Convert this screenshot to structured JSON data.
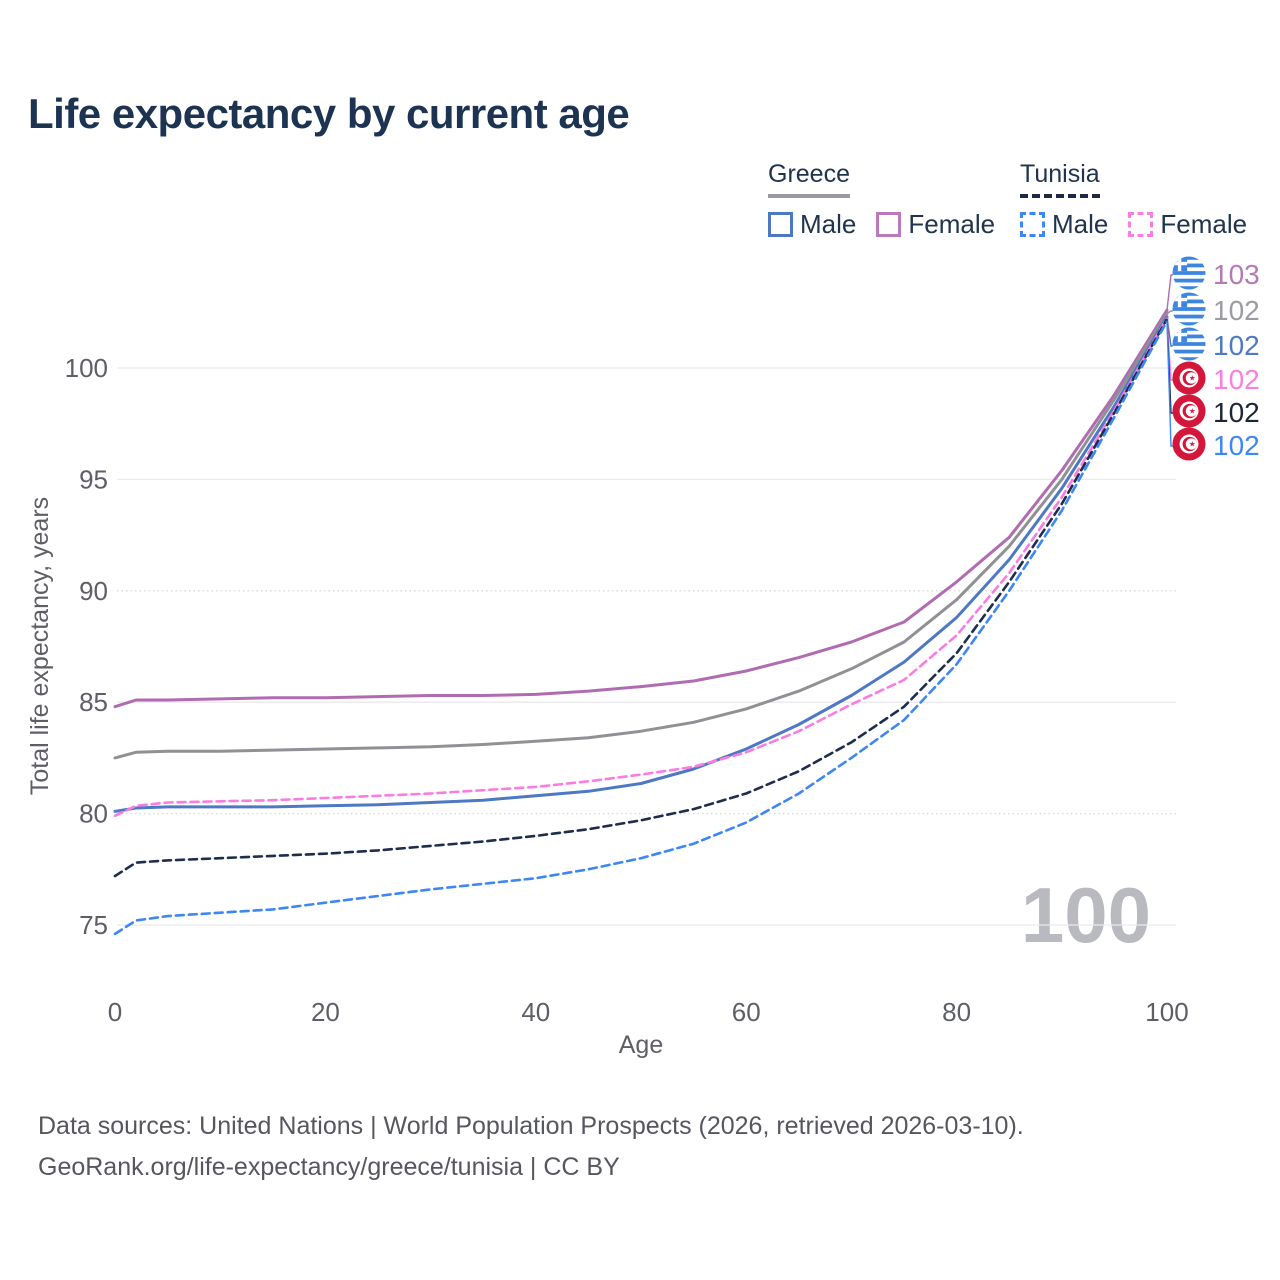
{
  "title": "Life expectancy by current age",
  "legend": {
    "groups": [
      {
        "label": "Greece",
        "line_style": "solid",
        "underline_color": "#9a9aa0",
        "items": [
          {
            "label": "Male",
            "color": "#4d78c4",
            "dashed": false
          },
          {
            "label": "Female",
            "color": "#bb79bb",
            "dashed": false
          }
        ]
      },
      {
        "label": "Tunisia",
        "line_style": "dashed",
        "underline_color": "#1c2940",
        "items": [
          {
            "label": "Male",
            "color": "#3d87f5",
            "dashed": true
          },
          {
            "label": "Female",
            "color": "#fc7ee0",
            "dashed": true
          }
        ]
      }
    ]
  },
  "chart_data": {
    "type": "line",
    "title": "Life expectancy by current age",
    "xlabel": "Age",
    "ylabel": "Total life expectancy, years",
    "xlim": [
      0,
      100
    ],
    "ylim": [
      73.5,
      103.5
    ],
    "x_ticks": [
      0,
      20,
      40,
      60,
      80,
      100
    ],
    "y_ticks": [
      75,
      80,
      85,
      90,
      95,
      100
    ],
    "dotted_gridlines": [
      80,
      90
    ],
    "grid": true,
    "legend_position": "top-right",
    "watermark": "100",
    "x": [
      0,
      2,
      5,
      10,
      15,
      20,
      25,
      30,
      35,
      40,
      45,
      50,
      55,
      60,
      65,
      70,
      75,
      80,
      85,
      90,
      95,
      100
    ],
    "series": [
      {
        "name": "Greece Female",
        "country": "Greece",
        "sex": "Female",
        "color": "#b16bb1",
        "dash": false,
        "end_label": "103",
        "values": [
          84.8,
          85.1,
          85.1,
          85.15,
          85.2,
          85.2,
          85.25,
          85.3,
          85.3,
          85.35,
          85.5,
          85.7,
          85.95,
          86.4,
          87.0,
          87.7,
          88.6,
          90.4,
          92.4,
          95.4,
          98.8,
          102.6
        ]
      },
      {
        "name": "Greece",
        "country": "Greece",
        "sex": "Both",
        "color": "#909095",
        "dash": false,
        "end_label": "102",
        "values": [
          82.5,
          82.75,
          82.8,
          82.8,
          82.85,
          82.9,
          82.95,
          83.0,
          83.1,
          83.25,
          83.4,
          83.7,
          84.1,
          84.7,
          85.5,
          86.5,
          87.7,
          89.6,
          92.0,
          95.0,
          98.6,
          102.45
        ]
      },
      {
        "name": "Greece Male",
        "country": "Greece",
        "sex": "Male",
        "color": "#4d78c4",
        "dash": false,
        "end_label": "102",
        "values": [
          80.1,
          80.25,
          80.3,
          80.3,
          80.3,
          80.35,
          80.4,
          80.5,
          80.6,
          80.8,
          81.0,
          81.35,
          82.0,
          82.9,
          84.0,
          85.3,
          86.8,
          88.8,
          91.4,
          94.6,
          98.3,
          102.3
        ]
      },
      {
        "name": "Tunisia Female",
        "country": "Tunisia",
        "sex": "Female",
        "color": "#fb7be1",
        "dash": true,
        "end_label": "102",
        "values": [
          79.9,
          80.35,
          80.5,
          80.55,
          80.6,
          80.7,
          80.8,
          80.9,
          81.05,
          81.2,
          81.45,
          81.75,
          82.1,
          82.75,
          83.7,
          84.9,
          86.0,
          88.0,
          90.8,
          94.2,
          98.1,
          102.25
        ]
      },
      {
        "name": "Tunisia",
        "country": "Tunisia",
        "sex": "Both",
        "color": "#1f2d4d",
        "dash": true,
        "end_label": "102",
        "values": [
          77.2,
          77.8,
          77.9,
          78.0,
          78.1,
          78.2,
          78.35,
          78.55,
          78.75,
          79.0,
          79.3,
          79.7,
          80.2,
          80.9,
          81.9,
          83.2,
          84.8,
          87.2,
          90.4,
          93.9,
          98.0,
          102.2
        ]
      },
      {
        "name": "Tunisia Male",
        "country": "Tunisia",
        "sex": "Male",
        "color": "#3d87f5",
        "dash": true,
        "end_label": "102",
        "values": [
          74.6,
          75.2,
          75.4,
          75.55,
          75.7,
          76.0,
          76.3,
          76.6,
          76.85,
          77.1,
          77.5,
          78.0,
          78.65,
          79.6,
          80.9,
          82.5,
          84.2,
          86.7,
          90.0,
          93.6,
          97.8,
          102.1
        ]
      }
    ]
  },
  "end_labels": [
    {
      "flag": "greece-flag",
      "value": "103",
      "color": "#b579b4"
    },
    {
      "flag": "greece-flag",
      "value": "102",
      "color": "#9b9ba3"
    },
    {
      "flag": "greece-flag",
      "value": "102",
      "color": "#4d7ac2"
    },
    {
      "flag": "tunisia-flag",
      "value": "102",
      "color": "#fc7ee0"
    },
    {
      "flag": "tunisia-flag",
      "value": "102",
      "color": "#1c2638"
    },
    {
      "flag": "tunisia-flag",
      "value": "102",
      "color": "#3d87f5"
    }
  ],
  "footer": {
    "line1": "Data sources: United Nations | World Population Prospects (2026, retrieved 2026-03-10).",
    "line2": "GeoRank.org/life-expectancy/greece/tunisia | CC BY"
  }
}
